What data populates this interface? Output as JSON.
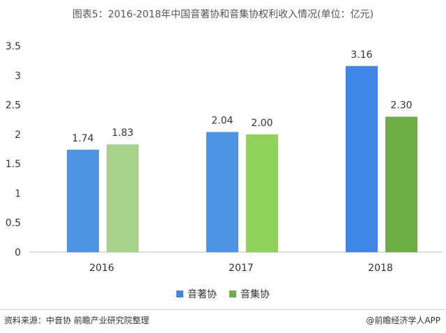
{
  "title": "图表5：2016-2018年中国音著协和音集协权利收入情况(单位：亿元)",
  "chart_data": {
    "type": "bar",
    "categories": [
      "2016",
      "2017",
      "2018"
    ],
    "series": [
      {
        "name": "音著协",
        "values": [
          1.74,
          2.04,
          3.16
        ]
      },
      {
        "name": "音集协",
        "values": [
          1.83,
          2.0,
          2.3
        ]
      }
    ],
    "data_labels": [
      [
        "1.74",
        "2.04",
        "3.16"
      ],
      [
        "1.83",
        "2.00",
        "2.30"
      ]
    ],
    "y_ticks": [
      "0",
      "0.5",
      "1",
      "1.5",
      "2",
      "2.5",
      "3",
      "3.5"
    ],
    "ylim": [
      0,
      3.5
    ],
    "legend_position": "bottom"
  },
  "colors": {
    "series1": [
      "#4f93e3",
      "#4f93e3",
      "#3f86e6"
    ],
    "series2": [
      "#a8d38f",
      "#8fd15b",
      "#6fae46"
    ],
    "legend1": "#3f86e6",
    "legend2": "#6fae46"
  },
  "footer": {
    "source": "资料来源：中音协 前瞻产业研究院整理",
    "brand": "@前瞻经济学人APP"
  }
}
